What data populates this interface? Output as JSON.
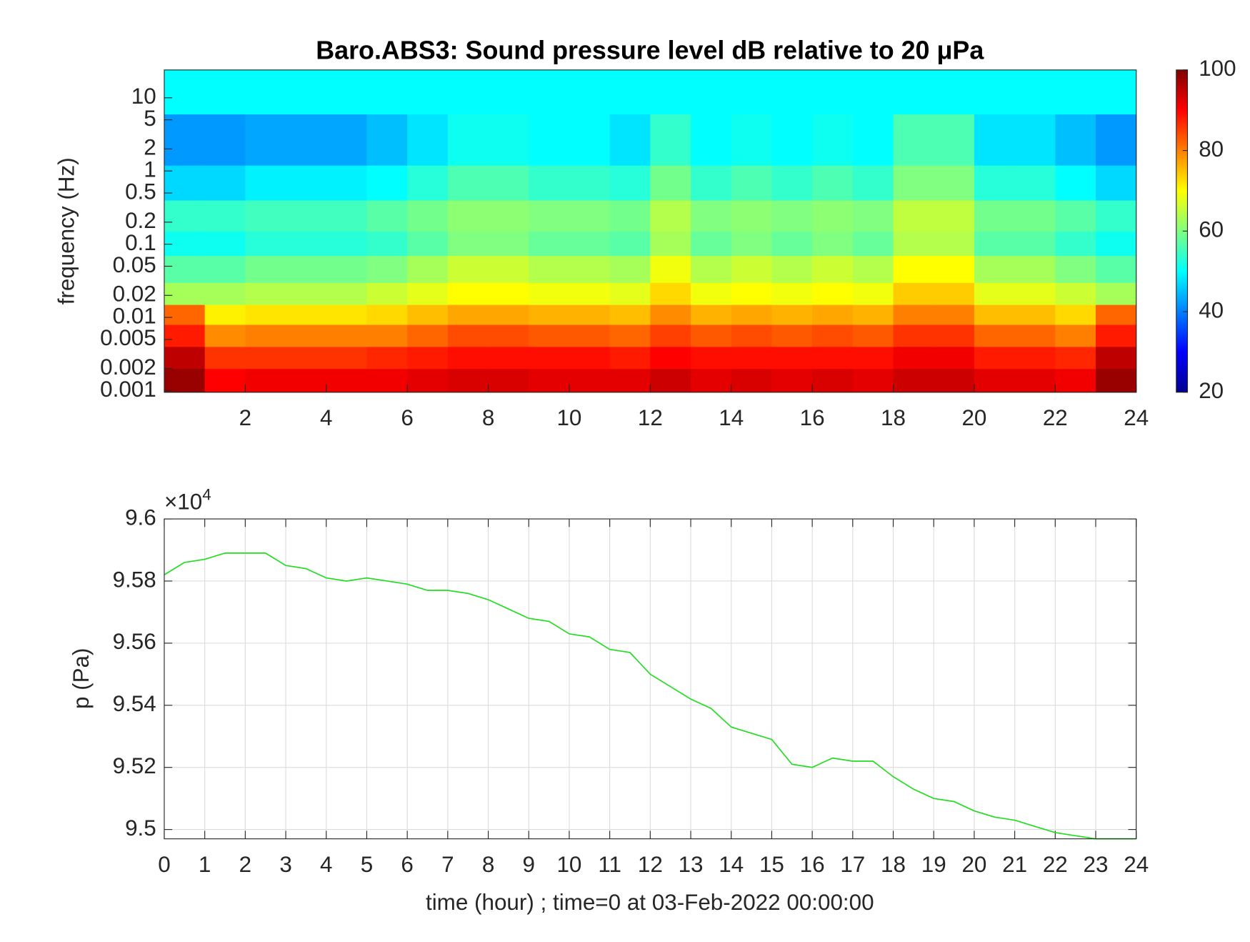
{
  "chart_data": [
    {
      "type": "heatmap",
      "title": "Baro.ABS3: Sound pressure level dB relative to 20 μPa",
      "ylabel": "frequency (Hz)",
      "x_edges": [
        0,
        1,
        2,
        3,
        4,
        5,
        6,
        7,
        8,
        9,
        10,
        11,
        12,
        13,
        14,
        15,
        16,
        17,
        18,
        19,
        20,
        21,
        22,
        23,
        24
      ],
      "y_edges": [
        0.00095,
        0.002,
        0.004,
        0.008,
        0.015,
        0.03,
        0.07,
        0.15,
        0.4,
        1.2,
        6,
        24
      ],
      "values": [
        [
          98,
          90,
          91,
          91,
          91,
          91,
          92,
          93,
          93,
          92,
          92,
          92,
          94,
          92,
          93,
          92,
          93,
          92,
          94,
          94,
          92,
          92,
          91,
          98
        ],
        [
          95,
          86,
          86,
          86,
          86,
          87,
          88,
          89,
          89,
          89,
          89,
          88,
          90,
          89,
          89,
          89,
          89,
          89,
          91,
          91,
          88,
          88,
          87,
          95
        ],
        [
          88,
          79,
          80,
          80,
          80,
          80,
          82,
          84,
          84,
          83,
          83,
          82,
          85,
          83,
          84,
          83,
          84,
          83,
          86,
          86,
          82,
          82,
          80,
          88
        ],
        [
          82,
          71,
          72,
          72,
          72,
          73,
          75,
          77,
          77,
          76,
          76,
          75,
          79,
          76,
          77,
          76,
          77,
          76,
          80,
          80,
          75,
          75,
          73,
          82
        ],
        [
          63,
          63,
          64,
          64,
          64,
          66,
          68,
          70,
          70,
          69,
          69,
          68,
          73,
          69,
          70,
          69,
          70,
          69,
          74,
          74,
          68,
          68,
          66,
          63
        ],
        [
          57,
          57,
          59,
          59,
          59,
          60,
          63,
          66,
          66,
          64,
          64,
          63,
          69,
          64,
          66,
          64,
          66,
          64,
          70,
          70,
          63,
          63,
          60,
          57
        ],
        [
          51,
          51,
          53,
          53,
          53,
          54,
          57,
          60,
          60,
          58,
          58,
          57,
          63,
          58,
          60,
          58,
          60,
          58,
          64,
          64,
          57,
          57,
          54,
          51
        ],
        [
          54,
          54,
          55,
          55,
          55,
          57,
          59,
          61,
          61,
          60,
          60,
          59,
          64,
          60,
          61,
          60,
          61,
          60,
          65,
          65,
          59,
          59,
          57,
          54
        ],
        [
          47,
          47,
          49,
          49,
          49,
          50,
          53,
          56,
          56,
          54,
          54,
          53,
          59,
          54,
          56,
          54,
          56,
          54,
          60,
          60,
          53,
          53,
          50,
          47
        ],
        [
          42,
          42,
          43,
          43,
          43,
          45,
          48,
          51,
          51,
          50,
          50,
          48,
          54,
          50,
          51,
          50,
          51,
          50,
          56,
          56,
          48,
          48,
          45,
          42
        ],
        [
          50,
          50,
          50,
          50,
          50,
          50,
          50,
          50,
          50,
          50,
          50,
          50,
          50,
          50,
          50,
          50,
          50,
          50,
          50,
          50,
          50,
          50,
          50,
          50
        ]
      ],
      "xlim": [
        0,
        24
      ],
      "xticks": [
        2,
        4,
        6,
        8,
        10,
        12,
        14,
        16,
        18,
        20,
        22,
        24
      ],
      "ylim": [
        0.00095,
        24
      ],
      "ylog": true,
      "yticks": [
        0.001,
        0.002,
        0.005,
        0.01,
        0.02,
        0.05,
        0.1,
        0.2,
        0.5,
        1,
        2,
        5,
        10
      ],
      "colormap": "jet",
      "clim": [
        20,
        100
      ],
      "cticks": [
        20,
        40,
        60,
        80,
        100
      ]
    },
    {
      "type": "line",
      "xlabel": "time (hour) ; time=0 at 03-Feb-2022 00:00:00",
      "ylabel": "p (Pa)",
      "y_multiplier": "×10",
      "y_multiplier_exponent": "4",
      "x": [
        0,
        0.5,
        1,
        1.5,
        2,
        2.5,
        3,
        3.5,
        4,
        4.5,
        5,
        5.5,
        6,
        6.5,
        7,
        7.5,
        8,
        8.5,
        9,
        9.5,
        10,
        10.5,
        11,
        11.5,
        12,
        12.5,
        13,
        13.5,
        14,
        14.5,
        15,
        15.5,
        16,
        16.5,
        17,
        17.5,
        18,
        18.5,
        19,
        19.5,
        20,
        20.5,
        21,
        21.5,
        22,
        22.5,
        23,
        23.5,
        24
      ],
      "series": [
        {
          "color": "#22dd22",
          "values": [
            9.582,
            9.586,
            9.587,
            9.589,
            9.589,
            9.589,
            9.585,
            9.584,
            9.581,
            9.58,
            9.581,
            9.58,
            9.579,
            9.577,
            9.577,
            9.576,
            9.574,
            9.571,
            9.568,
            9.567,
            9.563,
            9.562,
            9.558,
            9.557,
            9.55,
            9.546,
            9.542,
            9.539,
            9.533,
            9.531,
            9.529,
            9.521,
            9.52,
            9.523,
            9.522,
            9.522,
            9.517,
            9.513,
            9.51,
            9.509,
            9.506,
            9.504,
            9.503,
            9.501,
            9.499,
            9.498,
            9.497,
            9.497,
            9.497
          ]
        }
      ],
      "xlim": [
        0,
        24
      ],
      "xticks": [
        0,
        1,
        2,
        3,
        4,
        5,
        6,
        7,
        8,
        9,
        10,
        11,
        12,
        13,
        14,
        15,
        16,
        17,
        18,
        19,
        20,
        21,
        22,
        23,
        24
      ],
      "ylim": [
        9.497,
        9.6
      ],
      "yticks": [
        9.5,
        9.52,
        9.54,
        9.56,
        9.58,
        9.6
      ],
      "grid": true
    }
  ]
}
